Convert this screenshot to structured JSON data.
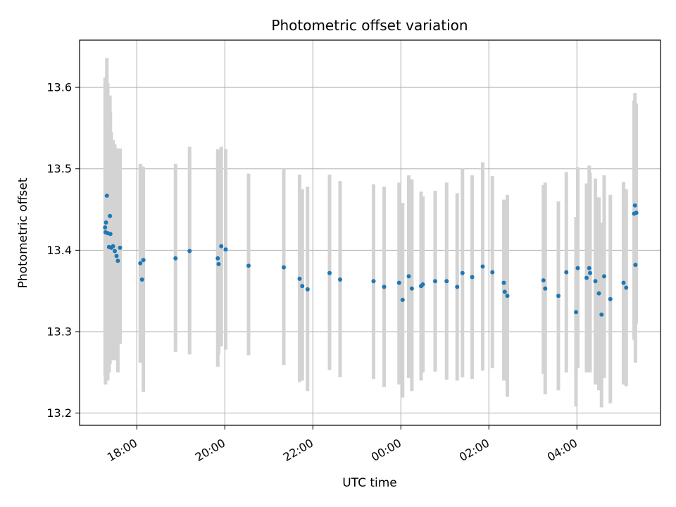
{
  "chart_data": {
    "type": "scatter",
    "title": "Photometric offset variation",
    "xlabel": "UTC time",
    "ylabel": "Photometric offset",
    "x_unit": "hours (UTC, relative to 00:00)",
    "xlim": [
      -7.3,
      5.9
    ],
    "ylim": [
      13.185,
      13.658
    ],
    "x_ticks": [
      {
        "value": -6,
        "label": "18:00"
      },
      {
        "value": -4,
        "label": "20:00"
      },
      {
        "value": -2,
        "label": "22:00"
      },
      {
        "value": 0,
        "label": "00:00"
      },
      {
        "value": 2,
        "label": "02:00"
      },
      {
        "value": 4,
        "label": "04:00"
      }
    ],
    "y_ticks": [
      {
        "value": 13.2,
        "label": "13.2"
      },
      {
        "value": 13.3,
        "label": "13.3"
      },
      {
        "value": 13.4,
        "label": "13.4"
      },
      {
        "value": 13.5,
        "label": "13.5"
      },
      {
        "value": 13.6,
        "label": "13.6"
      }
    ],
    "grid": true,
    "marker_color": "#1f77b4",
    "errorbar_color": "#d3d3d3",
    "points": [
      {
        "x": -6.72,
        "y": 13.428,
        "lo": 13.245,
        "hi": 13.612
      },
      {
        "x": -6.71,
        "y": 13.422,
        "lo": 13.235,
        "hi": 13.59
      },
      {
        "x": -6.7,
        "y": 13.434,
        "lo": 13.26,
        "hi": 13.6
      },
      {
        "x": -6.68,
        "y": 13.467,
        "lo": 13.27,
        "hi": 13.636
      },
      {
        "x": -6.66,
        "y": 13.421,
        "lo": 13.24,
        "hi": 13.605
      },
      {
        "x": -6.63,
        "y": 13.404,
        "lo": 13.25,
        "hi": 13.58
      },
      {
        "x": -6.61,
        "y": 13.442,
        "lo": 13.26,
        "hi": 13.59
      },
      {
        "x": -6.6,
        "y": 13.42,
        "lo": 13.28,
        "hi": 13.57
      },
      {
        "x": -6.58,
        "y": 13.403,
        "lo": 13.265,
        "hi": 13.545
      },
      {
        "x": -6.54,
        "y": 13.405,
        "lo": 13.275,
        "hi": 13.535
      },
      {
        "x": -6.5,
        "y": 13.399,
        "lo": 13.265,
        "hi": 13.53
      },
      {
        "x": -6.46,
        "y": 13.393,
        "lo": 13.27,
        "hi": 13.525
      },
      {
        "x": -6.43,
        "y": 13.387,
        "lo": 13.25,
        "hi": 13.525
      },
      {
        "x": -6.38,
        "y": 13.403,
        "lo": 13.285,
        "hi": 13.525
      },
      {
        "x": -5.92,
        "y": 13.384,
        "lo": 13.262,
        "hi": 13.506
      },
      {
        "x": -5.88,
        "y": 13.364,
        "lo": 13.262,
        "hi": 13.503
      },
      {
        "x": -5.85,
        "y": 13.388,
        "lo": 13.226,
        "hi": 13.502
      },
      {
        "x": -5.12,
        "y": 13.39,
        "lo": 13.275,
        "hi": 13.506
      },
      {
        "x": -4.8,
        "y": 13.399,
        "lo": 13.272,
        "hi": 13.527
      },
      {
        "x": -4.16,
        "y": 13.39,
        "lo": 13.257,
        "hi": 13.524
      },
      {
        "x": -4.14,
        "y": 13.383,
        "lo": 13.272,
        "hi": 13.522
      },
      {
        "x": -4.08,
        "y": 13.405,
        "lo": 13.282,
        "hi": 13.527
      },
      {
        "x": -3.98,
        "y": 13.401,
        "lo": 13.278,
        "hi": 13.524
      },
      {
        "x": -3.46,
        "y": 13.381,
        "lo": 13.271,
        "hi": 13.494
      },
      {
        "x": -2.66,
        "y": 13.379,
        "lo": 13.259,
        "hi": 13.5
      },
      {
        "x": -2.3,
        "y": 13.365,
        "lo": 13.238,
        "hi": 13.493
      },
      {
        "x": -2.24,
        "y": 13.356,
        "lo": 13.24,
        "hi": 13.475
      },
      {
        "x": -2.12,
        "y": 13.352,
        "lo": 13.227,
        "hi": 13.478
      },
      {
        "x": -1.62,
        "y": 13.372,
        "lo": 13.253,
        "hi": 13.493
      },
      {
        "x": -1.38,
        "y": 13.364,
        "lo": 13.244,
        "hi": 13.485
      },
      {
        "x": -0.62,
        "y": 13.362,
        "lo": 13.242,
        "hi": 13.481
      },
      {
        "x": -0.38,
        "y": 13.355,
        "lo": 13.232,
        "hi": 13.478
      },
      {
        "x": -0.04,
        "y": 13.36,
        "lo": 13.235,
        "hi": 13.483
      },
      {
        "x": 0.04,
        "y": 13.339,
        "lo": 13.219,
        "hi": 13.458
      },
      {
        "x": 0.18,
        "y": 13.368,
        "lo": 13.243,
        "hi": 13.492
      },
      {
        "x": 0.25,
        "y": 13.353,
        "lo": 13.227,
        "hi": 13.487
      },
      {
        "x": 0.46,
        "y": 13.356,
        "lo": 13.24,
        "hi": 13.472
      },
      {
        "x": 0.5,
        "y": 13.358,
        "lo": 13.25,
        "hi": 13.466
      },
      {
        "x": 0.78,
        "y": 13.362,
        "lo": 13.251,
        "hi": 13.473
      },
      {
        "x": 1.04,
        "y": 13.362,
        "lo": 13.241,
        "hi": 13.483
      },
      {
        "x": 1.28,
        "y": 13.355,
        "lo": 13.24,
        "hi": 13.47
      },
      {
        "x": 1.4,
        "y": 13.372,
        "lo": 13.244,
        "hi": 13.5
      },
      {
        "x": 1.62,
        "y": 13.367,
        "lo": 13.242,
        "hi": 13.492
      },
      {
        "x": 1.86,
        "y": 13.38,
        "lo": 13.252,
        "hi": 13.508
      },
      {
        "x": 2.08,
        "y": 13.373,
        "lo": 13.255,
        "hi": 13.491
      },
      {
        "x": 2.34,
        "y": 13.36,
        "lo": 13.24,
        "hi": 13.462
      },
      {
        "x": 2.36,
        "y": 13.349,
        "lo": 13.24,
        "hi": 13.458
      },
      {
        "x": 2.42,
        "y": 13.344,
        "lo": 13.22,
        "hi": 13.468
      },
      {
        "x": 3.24,
        "y": 13.363,
        "lo": 13.248,
        "hi": 13.48
      },
      {
        "x": 3.28,
        "y": 13.353,
        "lo": 13.223,
        "hi": 13.483
      },
      {
        "x": 3.58,
        "y": 13.344,
        "lo": 13.228,
        "hi": 13.46
      },
      {
        "x": 3.76,
        "y": 13.373,
        "lo": 13.25,
        "hi": 13.496
      },
      {
        "x": 3.98,
        "y": 13.324,
        "lo": 13.208,
        "hi": 13.441
      },
      {
        "x": 4.02,
        "y": 13.378,
        "lo": 13.255,
        "hi": 13.502
      },
      {
        "x": 4.22,
        "y": 13.366,
        "lo": 13.25,
        "hi": 13.482
      },
      {
        "x": 4.28,
        "y": 13.378,
        "lo": 13.252,
        "hi": 13.504
      },
      {
        "x": 4.3,
        "y": 13.372,
        "lo": 13.25,
        "hi": 13.495
      },
      {
        "x": 4.42,
        "y": 13.362,
        "lo": 13.235,
        "hi": 13.488
      },
      {
        "x": 4.5,
        "y": 13.347,
        "lo": 13.228,
        "hi": 13.465
      },
      {
        "x": 4.56,
        "y": 13.321,
        "lo": 13.207,
        "hi": 13.434
      },
      {
        "x": 4.62,
        "y": 13.368,
        "lo": 13.243,
        "hi": 13.492
      },
      {
        "x": 4.76,
        "y": 13.34,
        "lo": 13.212,
        "hi": 13.468
      },
      {
        "x": 5.06,
        "y": 13.36,
        "lo": 13.235,
        "hi": 13.484
      },
      {
        "x": 5.12,
        "y": 13.354,
        "lo": 13.233,
        "hi": 13.475
      },
      {
        "x": 5.3,
        "y": 13.445,
        "lo": 13.29,
        "hi": 13.584
      },
      {
        "x": 5.32,
        "y": 13.455,
        "lo": 13.325,
        "hi": 13.593
      },
      {
        "x": 5.33,
        "y": 13.382,
        "lo": 13.262,
        "hi": 13.51
      },
      {
        "x": 5.35,
        "y": 13.446,
        "lo": 13.31,
        "hi": 13.58
      }
    ]
  }
}
